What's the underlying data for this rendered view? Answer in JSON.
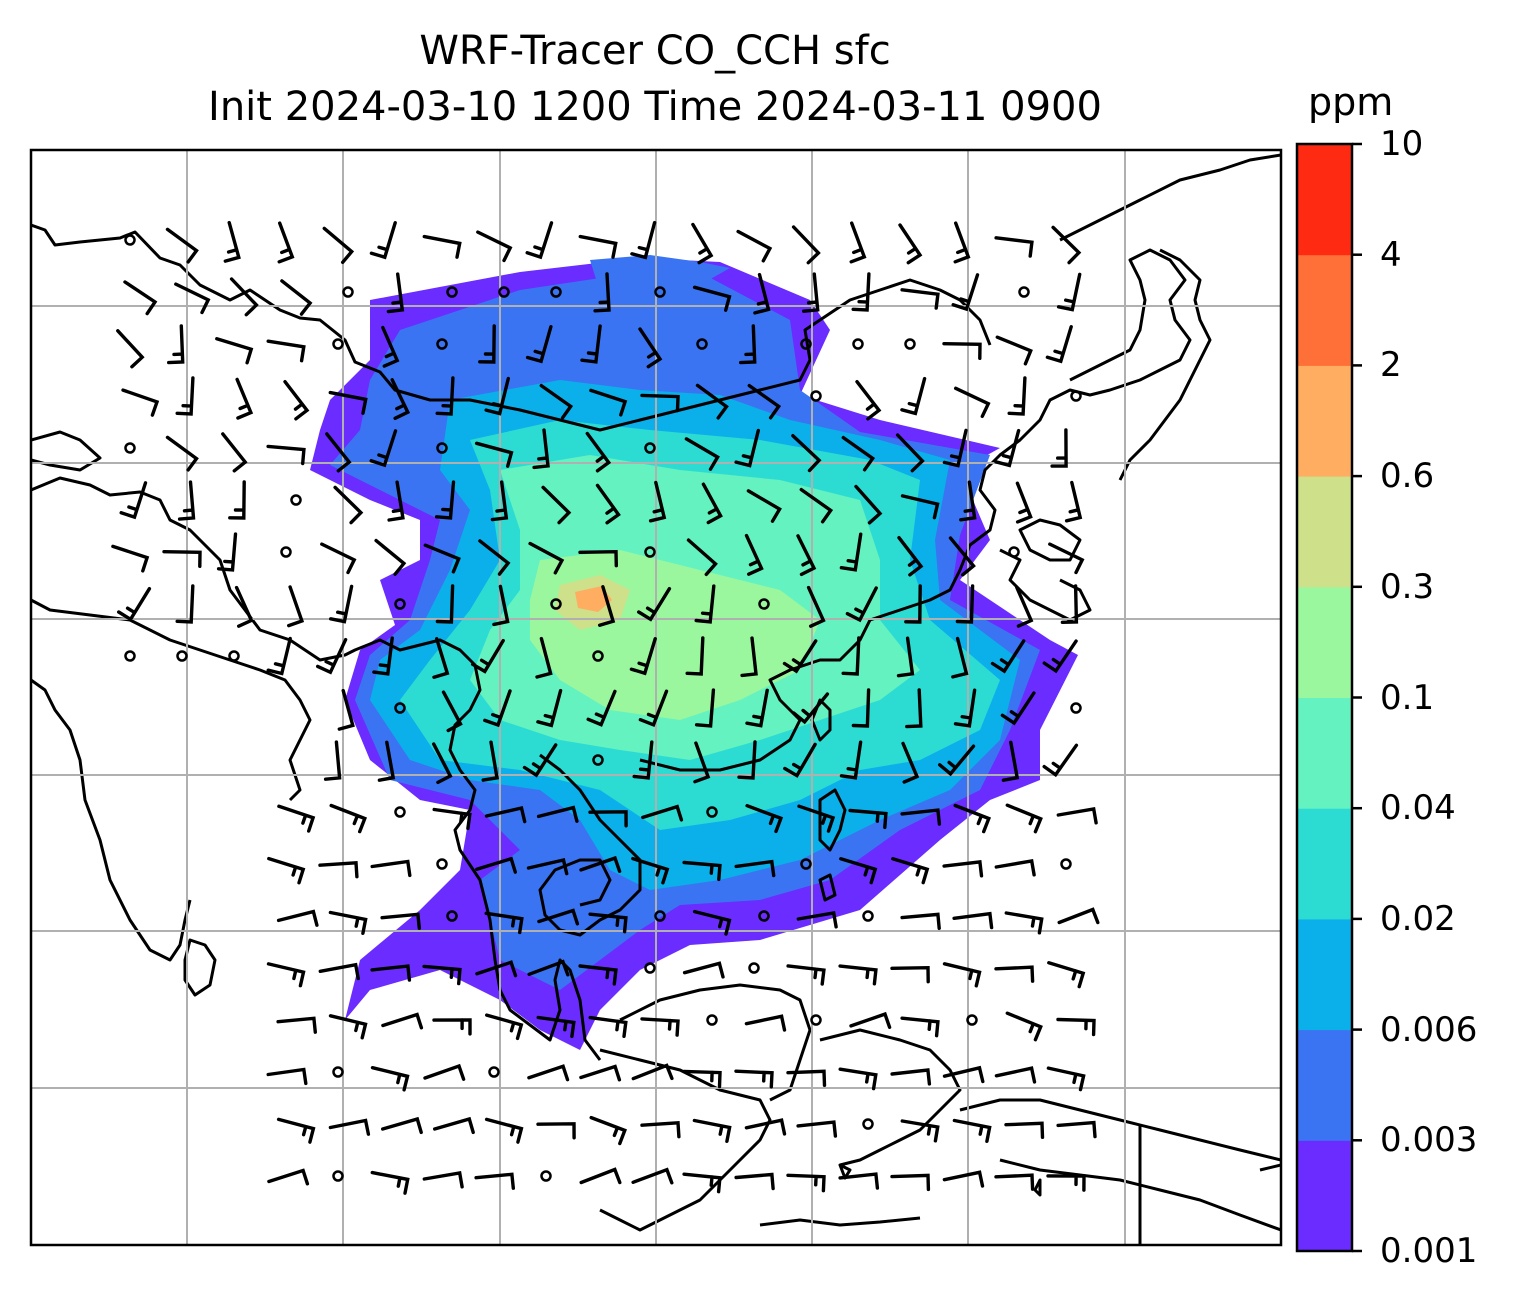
{
  "title": {
    "line1": "WRF-Tracer CO_CCH sfc",
    "line2": "Init 2024-03-10 1200 Time 2024-03-11 0900"
  },
  "colorbar": {
    "unit": "ppm",
    "levels": [
      "0.001",
      "0.003",
      "0.006",
      "0.02",
      "0.04",
      "0.1",
      "0.3",
      "0.6",
      "2",
      "4",
      "10"
    ],
    "colors": [
      "#6a2cff",
      "#3a74f2",
      "#0bb0ea",
      "#2cdcd2",
      "#64f2c0",
      "#9af79e",
      "#cee08a",
      "#ffad61",
      "#ff7038",
      "#ff2a12"
    ]
  },
  "map": {
    "background": "#ffffff",
    "coastline_color": "#000000",
    "gridline_color": "#b0b0b0",
    "wind_barb_color": "#000000"
  }
}
